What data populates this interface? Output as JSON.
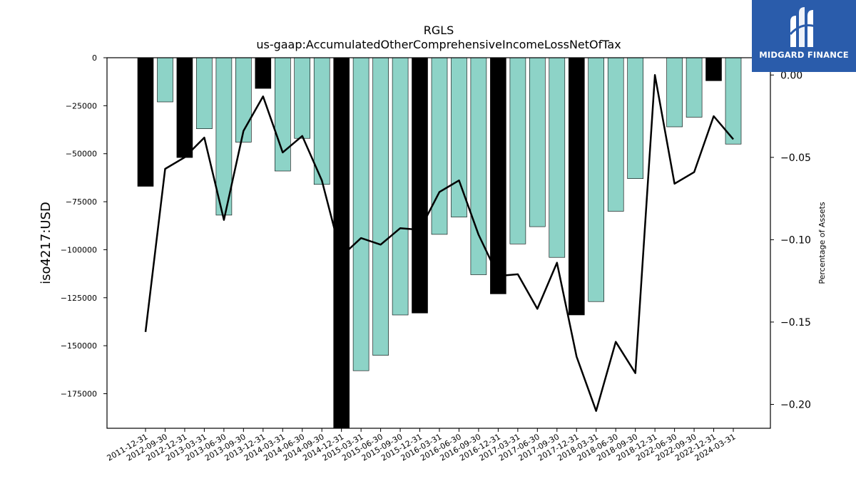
{
  "logo": {
    "text": "MIDGARD FINANCE",
    "icon": "midgard-logo-icon",
    "background": "#2a5cab"
  },
  "chart_data": {
    "type": "bar",
    "title": "RGLS",
    "subtitle": "us-gaap:AccumulatedOtherComprehensiveIncomeLossNetOfTax",
    "xlabel": "",
    "ylabel": "iso4217:USD",
    "y2label": "Percentage of Assets",
    "ylim": [
      -193000,
      0
    ],
    "y2lim": [
      -0.2145,
      0.0105
    ],
    "yticks": [
      0,
      -25000,
      -50000,
      -75000,
      -100000,
      -125000,
      -150000,
      -175000
    ],
    "y2ticks": [
      0.0,
      -0.05,
      -0.1,
      -0.15,
      -0.2
    ],
    "y2ticklabels": [
      "0.00",
      "−0.05",
      "−0.10",
      "−0.15",
      "−0.20"
    ],
    "grid": false,
    "categories": [
      "2011-12-31",
      "2012-09-30",
      "2012-12-31",
      "2013-03-31",
      "2013-06-30",
      "2013-09-30",
      "2013-12-31",
      "2014-03-31",
      "2014-06-30",
      "2014-09-30",
      "2014-12-31",
      "2015-03-31",
      "2015-06-30",
      "2015-09-30",
      "2015-12-31",
      "2016-03-31",
      "2016-06-30",
      "2016-09-30",
      "2016-12-31",
      "2017-03-31",
      "2017-06-30",
      "2017-09-30",
      "2017-12-31",
      "2018-03-31",
      "2018-06-30",
      "2018-09-30",
      "2018-12-31",
      "2022-06-30",
      "2022-09-30",
      "2022-12-31",
      "2024-03-31"
    ],
    "series": [
      {
        "type": "bar",
        "values": [
          -67000,
          -23000,
          -52000,
          -37000,
          -82000,
          -44000,
          -16000,
          -59000,
          -42000,
          -66000,
          -193000,
          -163000,
          -155000,
          -134000,
          -133000,
          -92000,
          -83000,
          -113000,
          -123000,
          -97000,
          -88000,
          -104000,
          -134000,
          -127000,
          -80000,
          -63000,
          0,
          -36000,
          -31000,
          -12000,
          -45000
        ],
        "highlight": [
          true,
          false,
          true,
          false,
          false,
          false,
          true,
          false,
          false,
          false,
          true,
          false,
          false,
          false,
          true,
          false,
          false,
          false,
          true,
          false,
          false,
          false,
          true,
          false,
          false,
          false,
          false,
          false,
          false,
          true,
          false
        ],
        "color": "#8dd3c7",
        "highlight_color": "#000000"
      },
      {
        "type": "line",
        "axis": "right",
        "values": [
          -0.156,
          -0.057,
          -0.05,
          -0.038,
          -0.088,
          -0.034,
          -0.013,
          -0.047,
          -0.037,
          -0.064,
          -0.11,
          -0.099,
          -0.103,
          -0.093,
          -0.094,
          -0.071,
          -0.064,
          -0.097,
          -0.122,
          -0.121,
          -0.142,
          -0.114,
          -0.171,
          -0.204,
          -0.162,
          -0.181,
          0.0,
          -0.066,
          -0.059,
          -0.025,
          -0.039
        ],
        "color": "#000000"
      }
    ]
  }
}
